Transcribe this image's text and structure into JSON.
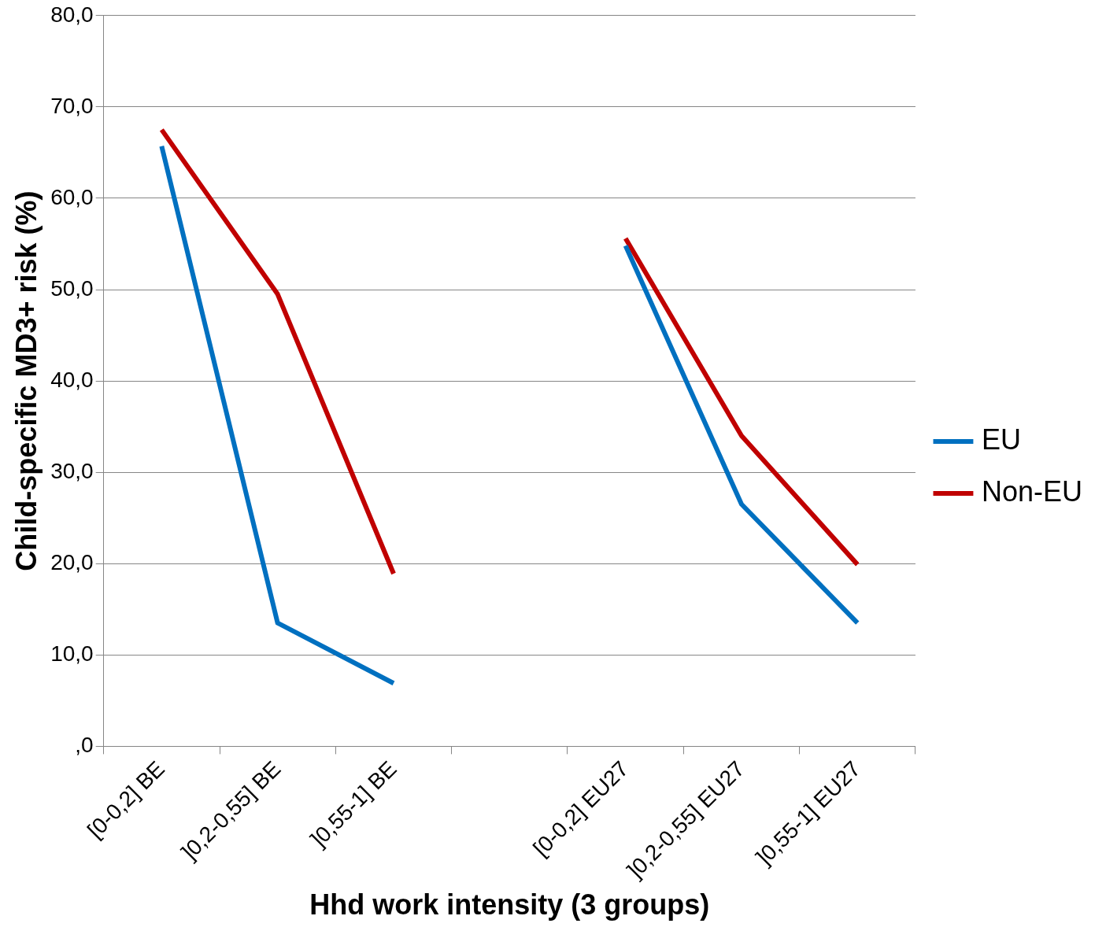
{
  "chart_data": {
    "type": "line",
    "xlabel": "Hhd work intensity (3 groups)",
    "ylabel": "Child-specific MD3+ risk (%)",
    "categories": [
      "[0-0,2] BE",
      "]0,2-0,55] BE",
      "]0,55-1] BE",
      null,
      "[0-0,2] EU27",
      "]0,2-0,55] EU27",
      "]0,55-1] EU27"
    ],
    "series": [
      {
        "name": "EU",
        "color": "#0070c0",
        "values": [
          65.7,
          13.5,
          6.9,
          null,
          54.8,
          26.5,
          13.5
        ]
      },
      {
        "name": "Non-EU",
        "color": "#c00000",
        "values": [
          67.5,
          49.5,
          18.9,
          null,
          55.6,
          34.0,
          19.9
        ]
      }
    ],
    "ylim": [
      0,
      80
    ],
    "yticks": [
      {
        "value": 0,
        "label": ",0"
      },
      {
        "value": 10,
        "label": "10,0"
      },
      {
        "value": 20,
        "label": "20,0"
      },
      {
        "value": 30,
        "label": "30,0"
      },
      {
        "value": 40,
        "label": "40,0"
      },
      {
        "value": 50,
        "label": "50,0"
      },
      {
        "value": 60,
        "label": "60,0"
      },
      {
        "value": 70,
        "label": "70,0"
      },
      {
        "value": 80,
        "label": "80,0"
      }
    ],
    "grid": "y",
    "legend": "right",
    "marker": "none",
    "line_style": "solid"
  }
}
